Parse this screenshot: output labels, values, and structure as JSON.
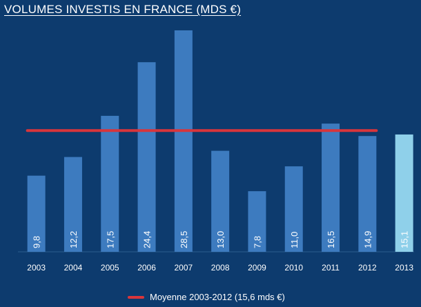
{
  "chart_data": {
    "type": "bar",
    "title": "VOLUMES INVESTIS EN FRANCE (MDS €)",
    "categories": [
      "2003",
      "2004",
      "2005",
      "2006",
      "2007",
      "2008",
      "2009",
      "2010",
      "2011",
      "2012",
      "2013"
    ],
    "values": [
      9.8,
      12.2,
      17.5,
      24.4,
      28.5,
      13.0,
      7.8,
      11.0,
      16.5,
      14.9,
      15.1
    ],
    "value_labels": [
      "9,8",
      "12,2",
      "17,5",
      "24,4",
      "28,5",
      "13,0",
      "7,8",
      "11,0",
      "16,5",
      "14,9",
      "15,1"
    ],
    "highlight_category": "2013",
    "ylim": [
      0,
      30
    ],
    "reference_line": {
      "label": "Moyenne 2003-2012 (15,6 mds €)",
      "value": 15.6,
      "from_category": "2003",
      "to_category": "2012"
    },
    "legend_position": "bottom-center",
    "colors": {
      "background": "#0d3b6e",
      "bar": "#3d7bbf",
      "bar_highlight": "#8fd0ea",
      "average_line": "#d9353b",
      "text": "#ffffff"
    }
  }
}
